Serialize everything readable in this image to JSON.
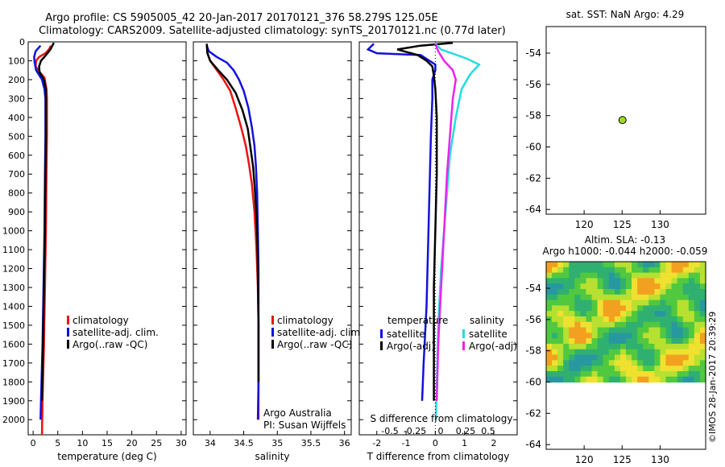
{
  "header": {
    "line1": "Argo profile: CS 5905005_42 20-Jan-2017 20170121_376 58.279S 125.05E",
    "line2": "Climatology: CARS2009. Satellite-adjusted climatology: synTS_20170121.nc (0.77d later)"
  },
  "side_label": "©IMOS 28-Jan-2017 20:39:29",
  "colors": {
    "red": "#ee1111",
    "blue": "#1111dd",
    "black": "#000000",
    "cyan": "#22dddd",
    "magenta": "#ee22ee",
    "green_dot": "#99dd22"
  },
  "chart_data": [
    {
      "id": "temperature",
      "type": "line",
      "xlabel": "temperature (deg C)",
      "xlim": [
        -1,
        31
      ],
      "xticks": [
        0,
        5,
        10,
        15,
        20,
        25,
        30
      ],
      "ylim": [
        0,
        2080
      ],
      "yticks": [
        0,
        100,
        200,
        300,
        400,
        500,
        600,
        700,
        800,
        900,
        1000,
        1100,
        1200,
        1300,
        1400,
        1500,
        1600,
        1700,
        1800,
        1900,
        2000
      ],
      "legend": [
        "climatology",
        "satellite-adj. clim.",
        "Argo(..raw -QC)"
      ],
      "series": [
        {
          "color": "red",
          "points": [
            [
              3.6,
              20
            ],
            [
              3.2,
              40
            ],
            [
              2.5,
              60
            ],
            [
              1.2,
              80
            ],
            [
              0.6,
              100
            ],
            [
              0.5,
              130
            ],
            [
              1.0,
              150
            ],
            [
              2.3,
              190
            ],
            [
              2.7,
              250
            ],
            [
              2.8,
              300
            ],
            [
              2.8,
              500
            ],
            [
              2.7,
              700
            ],
            [
              2.6,
              1000
            ],
            [
              2.4,
              1300
            ],
            [
              2.2,
              1600
            ],
            [
              1.9,
              1900
            ],
            [
              1.8,
              2080
            ]
          ]
        },
        {
          "color": "blue",
          "points": [
            [
              1.5,
              20
            ],
            [
              0.5,
              50
            ],
            [
              0.2,
              80
            ],
            [
              0.3,
              110
            ],
            [
              0.6,
              150
            ],
            [
              1.8,
              200
            ],
            [
              2.3,
              250
            ],
            [
              2.5,
              300
            ],
            [
              2.5,
              500
            ],
            [
              2.4,
              700
            ],
            [
              2.3,
              1000
            ],
            [
              2.1,
              1300
            ],
            [
              1.9,
              1600
            ],
            [
              1.6,
              1900
            ],
            [
              1.5,
              2000
            ]
          ]
        },
        {
          "color": "black",
          "points": [
            [
              4.2,
              5
            ],
            [
              3.5,
              40
            ],
            [
              2.6,
              70
            ],
            [
              1.6,
              100
            ],
            [
              1.2,
              130
            ],
            [
              1.3,
              160
            ],
            [
              2.2,
              200
            ],
            [
              2.6,
              250
            ],
            [
              2.6,
              300
            ],
            [
              2.6,
              500
            ],
            [
              2.5,
              700
            ],
            [
              2.4,
              1000
            ],
            [
              2.2,
              1300
            ],
            [
              2.0,
              1600
            ],
            [
              1.8,
              1900
            ]
          ]
        }
      ]
    },
    {
      "id": "salinity",
      "type": "line",
      "xlabel": "salinity",
      "xlim": [
        33.75,
        36.1
      ],
      "xticks": [
        34,
        34.5,
        35,
        35.5,
        36
      ],
      "ylim": [
        0,
        2080
      ],
      "legend": [
        "climatology",
        "satellite-adj. clim.",
        "Argo(..raw -QC)"
      ],
      "annotation": [
        "Argo Australia",
        "PI: Susan Wijffels"
      ],
      "series": [
        {
          "color": "red",
          "points": [
            [
              33.95,
              20
            ],
            [
              33.96,
              60
            ],
            [
              34.0,
              100
            ],
            [
              34.1,
              150
            ],
            [
              34.2,
              200
            ],
            [
              34.3,
              260
            ],
            [
              34.38,
              350
            ],
            [
              34.46,
              450
            ],
            [
              34.53,
              550
            ],
            [
              34.58,
              650
            ],
            [
              34.62,
              750
            ],
            [
              34.66,
              900
            ],
            [
              34.69,
              1100
            ],
            [
              34.71,
              1300
            ],
            [
              34.72,
              1500
            ],
            [
              34.72,
              1800
            ],
            [
              34.72,
              2000
            ]
          ]
        },
        {
          "color": "blue",
          "points": [
            [
              33.95,
              20
            ],
            [
              33.98,
              50
            ],
            [
              34.1,
              80
            ],
            [
              34.25,
              110
            ],
            [
              34.35,
              150
            ],
            [
              34.43,
              200
            ],
            [
              34.5,
              260
            ],
            [
              34.57,
              350
            ],
            [
              34.62,
              450
            ],
            [
              34.66,
              550
            ],
            [
              34.68,
              650
            ],
            [
              34.7,
              800
            ],
            [
              34.71,
              1000
            ],
            [
              34.72,
              1200
            ],
            [
              34.72,
              1500
            ],
            [
              34.72,
              1800
            ],
            [
              34.71,
              2000
            ]
          ]
        },
        {
          "color": "black",
          "points": [
            [
              33.95,
              10
            ],
            [
              33.96,
              60
            ],
            [
              34.0,
              100
            ],
            [
              34.12,
              150
            ],
            [
              34.25,
              200
            ],
            [
              34.38,
              270
            ],
            [
              34.48,
              360
            ],
            [
              34.56,
              460
            ],
            [
              34.6,
              560
            ],
            [
              34.64,
              660
            ],
            [
              34.67,
              800
            ],
            [
              34.7,
              1000
            ],
            [
              34.71,
              1200
            ],
            [
              34.72,
              1500
            ],
            [
              34.72,
              1800
            ]
          ]
        }
      ]
    },
    {
      "id": "difference",
      "type": "line",
      "xlabel": "T difference from climatology",
      "xlim": [
        -2.6,
        2.8
      ],
      "xticks": [
        -2,
        -1,
        0,
        1,
        2
      ],
      "top_axis_label": "S difference from climatology",
      "top_ticks": [
        -0.5,
        -0.25,
        0,
        0.25,
        0.5
      ],
      "ylim": [
        0,
        2080
      ],
      "legend_titles": [
        "temperature",
        "salinity"
      ],
      "legend": [
        "satellite",
        "Argo(-adj)",
        "satellite",
        "Argo(-adj)"
      ],
      "series": [
        {
          "color": "blue",
          "name": "satellite",
          "points": [
            [
              -2.1,
              10
            ],
            [
              -2.3,
              40
            ],
            [
              -2.0,
              60
            ],
            [
              -0.5,
              70
            ],
            [
              0.0,
              120
            ],
            [
              0.0,
              150
            ],
            [
              -0.1,
              200
            ],
            [
              -0.1,
              300
            ],
            [
              -0.15,
              500
            ],
            [
              -0.2,
              800
            ],
            [
              -0.25,
              1100
            ],
            [
              -0.3,
              1400
            ],
            [
              -0.4,
              1700
            ],
            [
              -0.45,
              1900
            ]
          ]
        },
        {
          "color": "black",
          "name": "Argo(-adj)",
          "points": [
            [
              0.6,
              5
            ],
            [
              -0.5,
              20
            ],
            [
              -1.3,
              40
            ],
            [
              -0.6,
              70
            ],
            [
              -0.3,
              100
            ],
            [
              -0.1,
              130
            ],
            [
              -0.05,
              180
            ],
            [
              0.0,
              250
            ],
            [
              0.05,
              400
            ],
            [
              0.05,
              700
            ],
            [
              0.0,
              1000
            ],
            [
              -0.05,
              1300
            ],
            [
              -0.05,
              1600
            ],
            [
              -0.05,
              1900
            ]
          ]
        },
        {
          "color": "cyan",
          "name": "satellite",
          "points": [
            [
              0.0,
              10
            ],
            [
              0.2,
              40
            ],
            [
              1.1,
              90
            ],
            [
              1.5,
              120
            ],
            [
              1.2,
              170
            ],
            [
              0.9,
              250
            ],
            [
              0.7,
              400
            ],
            [
              0.5,
              600
            ],
            [
              0.35,
              900
            ],
            [
              0.2,
              1200
            ],
            [
              0.1,
              1500
            ],
            [
              0.05,
              1800
            ],
            [
              0.02,
              2000
            ]
          ]
        },
        {
          "color": "magenta",
          "name": "Argo(-adj)",
          "points": [
            [
              0.0,
              10
            ],
            [
              0.1,
              50
            ],
            [
              0.3,
              100
            ],
            [
              0.6,
              150
            ],
            [
              0.7,
              200
            ],
            [
              0.6,
              300
            ],
            [
              0.5,
              500
            ],
            [
              0.4,
              700
            ],
            [
              0.3,
              1000
            ],
            [
              0.2,
              1300
            ],
            [
              0.1,
              1600
            ],
            [
              0.05,
              1900
            ]
          ]
        }
      ]
    },
    {
      "id": "location",
      "type": "scatter",
      "title": "sat. SST: NaN Argo: 4.29",
      "xlim": [
        115,
        136
      ],
      "ylim": [
        -64.3,
        -52.3
      ],
      "xticks": [
        120,
        125,
        130
      ],
      "yticks": [
        -54,
        -56,
        -58,
        -60,
        -62,
        -64
      ],
      "points": [
        [
          125.05,
          -58.28
        ]
      ]
    },
    {
      "id": "sla_map",
      "type": "heatmap",
      "title_line1": "Altim. SLA: -0.13",
      "title_line2": "Argo h1000: -0.044 h2000: -0.059",
      "xlim": [
        115,
        136
      ],
      "ylim": [
        -64.3,
        -52.3
      ],
      "xticks": [
        120,
        125,
        130
      ],
      "yticks": [
        -54,
        -56,
        -58,
        -60,
        -62,
        -64
      ],
      "data_extent": {
        "lat": [
          -60,
          -52.3
        ],
        "lon": [
          115,
          136
        ]
      }
    }
  ]
}
